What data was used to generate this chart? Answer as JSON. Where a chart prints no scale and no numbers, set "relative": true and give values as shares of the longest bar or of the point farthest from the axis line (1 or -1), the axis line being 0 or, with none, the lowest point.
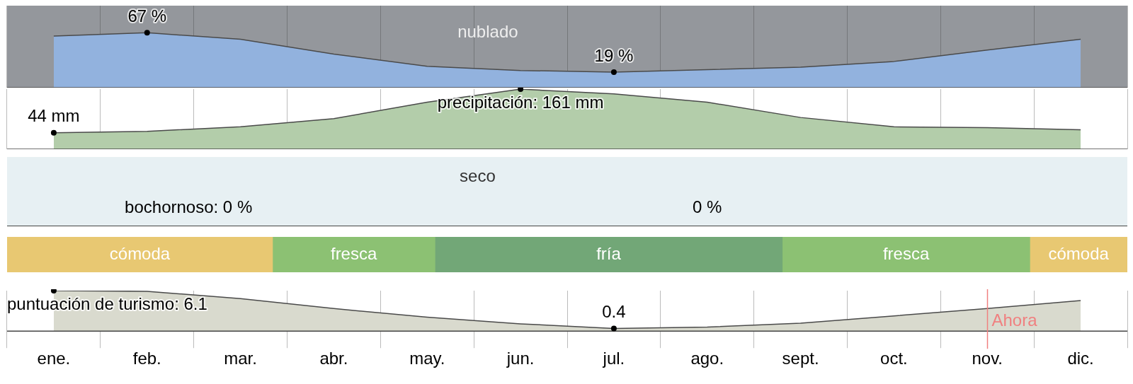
{
  "chart_data": [
    {
      "type": "area",
      "categories": [
        null,
        null,
        null,
        null,
        null,
        null,
        null,
        null,
        null,
        null,
        null,
        null
      ],
      "ylim": [
        0,
        100
      ],
      "tick_labels": false,
      "grid": "x",
      "legend": false,
      "series": [
        {
          "color": "#92b2de",
          "values": [
            63,
            67,
            59,
            41,
            26,
            21,
            19,
            22,
            25,
            32,
            46,
            59
          ],
          "value_labels": [
            null,
            "67 %",
            null,
            null,
            null,
            null,
            "19 %",
            null,
            null,
            null,
            null,
            null
          ]
        }
      ],
      "annotations": [
        "nublado"
      ]
    },
    {
      "type": "area",
      "categories": [
        null,
        null,
        null,
        null,
        null,
        null,
        null,
        null,
        null,
        null,
        null,
        null
      ],
      "tick_labels": false,
      "grid": "x",
      "legend": false,
      "series": [
        {
          "color": "#b3cdaa",
          "values": [
            44,
            48,
            60,
            82,
            126,
            161,
            148,
            126,
            85,
            60,
            58,
            52
          ],
          "value_labels": [
            "44 mm",
            null,
            null,
            null,
            null,
            "precipitación: 161 mm",
            null,
            null,
            null,
            null,
            null,
            null
          ]
        }
      ]
    },
    {
      "type": "other",
      "annotations": [
        "seco",
        "bochornoso: 0 %",
        "0 %"
      ]
    },
    {
      "type": "bar",
      "orientation": "horizontal",
      "stacked": true,
      "relative": true,
      "categories": [
        null
      ],
      "legend": false,
      "tick_labels": false,
      "series": [
        {
          "name": "cómoda",
          "color": "#e8c872",
          "values": [
            0.237
          ]
        },
        {
          "name": "fresca",
          "color": "#8cc173",
          "values": [
            0.145
          ]
        },
        {
          "name": "fría",
          "color": "#72a777",
          "values": [
            0.31
          ]
        },
        {
          "name": "fresca",
          "color": "#8cc173",
          "values": [
            0.221
          ]
        },
        {
          "name": "cómoda",
          "color": "#e8c872",
          "values": [
            0.087
          ]
        }
      ]
    },
    {
      "type": "area",
      "categories": [
        "ene.",
        "feb.",
        "mar.",
        "abr.",
        "may.",
        "jun.",
        "jul.",
        "ago.",
        "sept.",
        "oct.",
        "nov.",
        "dic."
      ],
      "grid": "x",
      "legend": false,
      "series": [
        {
          "color": "#d9dace",
          "values": [
            6.1,
            6,
            4.9,
            3.4,
            2.1,
            1.1,
            0.4,
            0.6,
            1.2,
            2.3,
            3.4,
            4.6
          ],
          "value_labels": [
            "puntuación de turismo: 6.1",
            null,
            null,
            null,
            null,
            null,
            "0.4",
            null,
            null,
            null,
            null,
            null
          ]
        }
      ],
      "ref_lines": [
        {
          "axis": "x",
          "value": "nov.",
          "label": "Ahora",
          "color": "#f08080"
        }
      ]
    }
  ]
}
